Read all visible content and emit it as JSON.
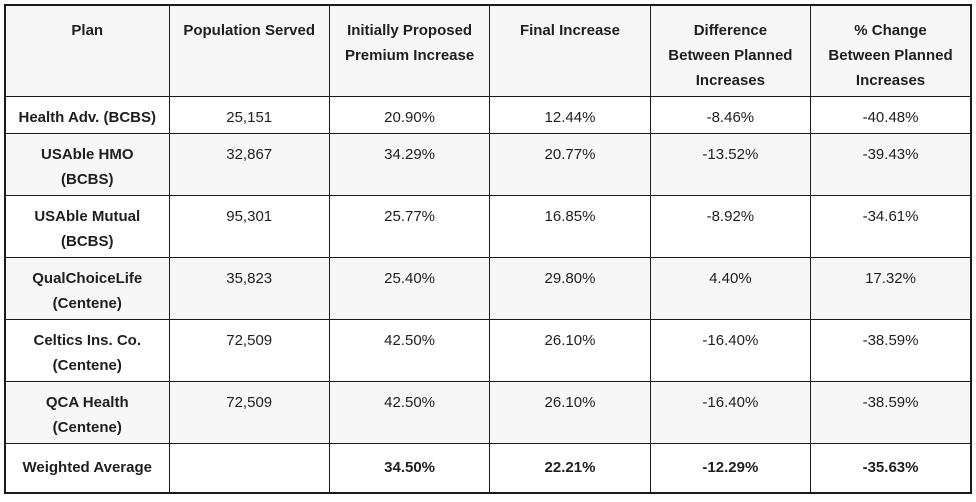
{
  "colors": {
    "border": "#1a1a1a",
    "stripe_background": "#f7f7f7",
    "row_background": "#ffffff",
    "text": "#1f1f1f"
  },
  "table": {
    "columns": [
      "Plan",
      "Population Served",
      "Initially Proposed\nPremium Increase",
      "Final Increase",
      "Difference\nBetween Planned\nIncreases",
      "% Change\nBetween Planned\nIncreases"
    ],
    "rows": [
      {
        "cells": [
          "Health Adv. (BCBS)",
          "25,151",
          "20.90%",
          "12.44%",
          "-8.46%",
          "-40.48%"
        ]
      },
      {
        "cells": [
          "USAble HMO\n(BCBS)",
          "32,867",
          "34.29%",
          "20.77%",
          "-13.52%",
          "-39.43%"
        ]
      },
      {
        "cells": [
          "USAble Mutual\n(BCBS)",
          "95,301",
          "25.77%",
          "16.85%",
          "-8.92%",
          "-34.61%"
        ]
      },
      {
        "cells": [
          "QualChoiceLife\n(Centene)",
          "35,823",
          "25.40%",
          "29.80%",
          "4.40%",
          "17.32%"
        ]
      },
      {
        "cells": [
          "Celtics Ins. Co.\n(Centene)",
          "72,509",
          "42.50%",
          "26.10%",
          "-16.40%",
          "-38.59%"
        ]
      },
      {
        "cells": [
          "QCA Health\n(Centene)",
          "72,509",
          "42.50%",
          "26.10%",
          "-16.40%",
          "-38.59%"
        ]
      }
    ],
    "footer": {
      "cells": [
        "Weighted Average",
        "",
        "34.50%",
        "22.21%",
        "-12.29%",
        "-35.63%"
      ]
    }
  },
  "chart_data": {
    "type": "table",
    "title": "",
    "columns": [
      "Plan",
      "Population Served",
      "Initially Proposed Premium Increase",
      "Final Increase",
      "Difference Between Planned Increases",
      "% Change Between Planned Increases"
    ],
    "rows": [
      [
        "Health Adv. (BCBS)",
        25151,
        "20.90%",
        "12.44%",
        "-8.46%",
        "-40.48%"
      ],
      [
        "USAble HMO (BCBS)",
        32867,
        "34.29%",
        "20.77%",
        "-13.52%",
        "-39.43%"
      ],
      [
        "USAble Mutual (BCBS)",
        95301,
        "25.77%",
        "16.85%",
        "-8.92%",
        "-34.61%"
      ],
      [
        "QualChoiceLife (Centene)",
        35823,
        "25.40%",
        "29.80%",
        "4.40%",
        "17.32%"
      ],
      [
        "Celtics Ins. Co. (Centene)",
        72509,
        "42.50%",
        "26.10%",
        "-16.40%",
        "-38.59%"
      ],
      [
        "QCA Health (Centene)",
        72509,
        "42.50%",
        "26.10%",
        "-16.40%",
        "-38.59%"
      ],
      [
        "Weighted Average",
        null,
        "34.50%",
        "22.21%",
        "-12.29%",
        "-35.63%"
      ]
    ],
    "layout_hints": {
      "striped_rows": "header, rows 2/4/6 light gray",
      "bold": "header, plan column, weighted-average row",
      "alignment": "all cells centered"
    }
  }
}
